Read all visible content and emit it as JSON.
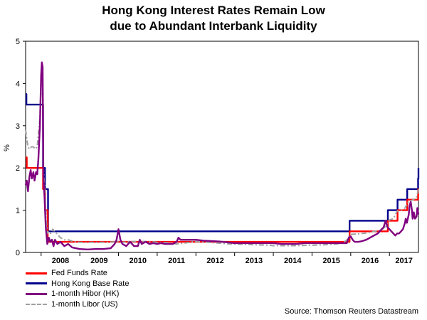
{
  "chart_data": {
    "type": "line",
    "title_line1": "Hong Kong Interest Rates Remain Low",
    "title_line2": "due to Abundant Interbank Liquidity",
    "ylabel": "%",
    "ylim": [
      0,
      5
    ],
    "yticks": [
      "0",
      "1",
      "2",
      "3",
      "4",
      "5"
    ],
    "xlim": [
      2007.6,
      2017.75
    ],
    "xticks": [
      "2008",
      "2009",
      "2010",
      "2011",
      "2012",
      "2013",
      "2014",
      "2015",
      "2016",
      "2017"
    ],
    "series": [
      {
        "name": "Fed Funds Rate",
        "color": "#ff0000",
        "step": true,
        "points": [
          [
            2007.6,
            2.25
          ],
          [
            2007.63,
            2.0
          ],
          [
            2008.0,
            2.0
          ],
          [
            2008.05,
            1.5
          ],
          [
            2008.1,
            1.0
          ],
          [
            2008.16,
            1.0
          ],
          [
            2008.17,
            0.25
          ],
          [
            2015.96,
            0.25
          ],
          [
            2015.97,
            0.5
          ],
          [
            2016.95,
            0.5
          ],
          [
            2016.96,
            0.75
          ],
          [
            2017.2,
            0.75
          ],
          [
            2017.21,
            1.0
          ],
          [
            2017.45,
            1.0
          ],
          [
            2017.46,
            1.25
          ],
          [
            2017.73,
            1.25
          ],
          [
            2017.74,
            1.5
          ],
          [
            2017.75,
            1.5
          ]
        ]
      },
      {
        "name": "Hong Kong Base Rate",
        "color": "#00008b",
        "step": true,
        "points": [
          [
            2007.6,
            3.75
          ],
          [
            2007.62,
            3.5
          ],
          [
            2008.0,
            3.5
          ],
          [
            2008.05,
            2.0
          ],
          [
            2008.1,
            1.5
          ],
          [
            2008.17,
            1.5
          ],
          [
            2008.18,
            0.5
          ],
          [
            2015.96,
            0.5
          ],
          [
            2015.97,
            0.75
          ],
          [
            2016.95,
            0.75
          ],
          [
            2016.96,
            1.0
          ],
          [
            2017.2,
            1.0
          ],
          [
            2017.21,
            1.25
          ],
          [
            2017.45,
            1.25
          ],
          [
            2017.46,
            1.5
          ],
          [
            2017.73,
            1.5
          ],
          [
            2017.74,
            1.75
          ],
          [
            2017.75,
            2.0
          ]
        ]
      },
      {
        "name": "1-month Hibor (HK)",
        "color": "#800080",
        "step": false,
        "points": [
          [
            2007.6,
            1.6
          ],
          [
            2007.63,
            1.7
          ],
          [
            2007.66,
            1.45
          ],
          [
            2007.7,
            1.8
          ],
          [
            2007.73,
            1.95
          ],
          [
            2007.76,
            1.75
          ],
          [
            2007.8,
            1.9
          ],
          [
            2007.83,
            1.7
          ],
          [
            2007.87,
            1.9
          ],
          [
            2007.9,
            1.85
          ],
          [
            2007.93,
            2.2
          ],
          [
            2007.97,
            3.0
          ],
          [
            2008.0,
            4.2
          ],
          [
            2008.02,
            4.5
          ],
          [
            2008.04,
            4.4
          ],
          [
            2008.06,
            1.8
          ],
          [
            2008.09,
            1.3
          ],
          [
            2008.12,
            0.6
          ],
          [
            2008.16,
            0.2
          ],
          [
            2008.2,
            0.35
          ],
          [
            2008.24,
            0.25
          ],
          [
            2008.28,
            0.3
          ],
          [
            2008.32,
            0.15
          ],
          [
            2008.36,
            0.3
          ],
          [
            2008.42,
            0.2
          ],
          [
            2008.5,
            0.25
          ],
          [
            2008.6,
            0.15
          ],
          [
            2008.7,
            0.2
          ],
          [
            2008.8,
            0.12
          ],
          [
            2008.9,
            0.1
          ],
          [
            2009.0,
            0.08
          ],
          [
            2009.2,
            0.07
          ],
          [
            2009.4,
            0.08
          ],
          [
            2009.6,
            0.08
          ],
          [
            2009.8,
            0.1
          ],
          [
            2009.9,
            0.2
          ],
          [
            2009.95,
            0.3
          ],
          [
            2010.0,
            0.55
          ],
          [
            2010.05,
            0.3
          ],
          [
            2010.1,
            0.2
          ],
          [
            2010.2,
            0.15
          ],
          [
            2010.3,
            0.25
          ],
          [
            2010.4,
            0.15
          ],
          [
            2010.5,
            0.15
          ],
          [
            2010.55,
            0.3
          ],
          [
            2010.6,
            0.2
          ],
          [
            2010.7,
            0.25
          ],
          [
            2010.8,
            0.2
          ],
          [
            2010.9,
            0.22
          ],
          [
            2011.0,
            0.2
          ],
          [
            2011.1,
            0.22
          ],
          [
            2011.2,
            0.2
          ],
          [
            2011.3,
            0.2
          ],
          [
            2011.4,
            0.2
          ],
          [
            2011.5,
            0.25
          ],
          [
            2011.55,
            0.35
          ],
          [
            2011.6,
            0.3
          ],
          [
            2011.7,
            0.3
          ],
          [
            2011.8,
            0.3
          ],
          [
            2011.9,
            0.3
          ],
          [
            2012.0,
            0.3
          ],
          [
            2012.2,
            0.28
          ],
          [
            2012.4,
            0.27
          ],
          [
            2012.6,
            0.26
          ],
          [
            2012.8,
            0.24
          ],
          [
            2013.0,
            0.22
          ],
          [
            2013.2,
            0.22
          ],
          [
            2013.4,
            0.22
          ],
          [
            2013.6,
            0.22
          ],
          [
            2013.8,
            0.22
          ],
          [
            2014.0,
            0.22
          ],
          [
            2014.2,
            0.2
          ],
          [
            2014.4,
            0.2
          ],
          [
            2014.6,
            0.2
          ],
          [
            2014.8,
            0.22
          ],
          [
            2015.0,
            0.22
          ],
          [
            2015.2,
            0.22
          ],
          [
            2015.4,
            0.22
          ],
          [
            2015.6,
            0.22
          ],
          [
            2015.8,
            0.22
          ],
          [
            2015.9,
            0.22
          ],
          [
            2015.95,
            0.35
          ],
          [
            2016.0,
            0.38
          ],
          [
            2016.05,
            0.3
          ],
          [
            2016.1,
            0.25
          ],
          [
            2016.2,
            0.25
          ],
          [
            2016.3,
            0.27
          ],
          [
            2016.4,
            0.3
          ],
          [
            2016.5,
            0.35
          ],
          [
            2016.6,
            0.4
          ],
          [
            2016.7,
            0.45
          ],
          [
            2016.75,
            0.5
          ],
          [
            2016.8,
            0.55
          ],
          [
            2016.85,
            0.6
          ],
          [
            2016.9,
            0.75
          ],
          [
            2016.95,
            0.6
          ],
          [
            2017.0,
            0.55
          ],
          [
            2017.05,
            0.5
          ],
          [
            2017.1,
            0.45
          ],
          [
            2017.15,
            0.4
          ],
          [
            2017.2,
            0.45
          ],
          [
            2017.25,
            0.45
          ],
          [
            2017.3,
            0.5
          ],
          [
            2017.35,
            0.55
          ],
          [
            2017.4,
            0.7
          ],
          [
            2017.42,
            0.8
          ],
          [
            2017.45,
            0.7
          ],
          [
            2017.5,
            0.9
          ],
          [
            2017.52,
            1.1
          ],
          [
            2017.55,
            1.2
          ],
          [
            2017.58,
            1.0
          ],
          [
            2017.6,
            0.8
          ],
          [
            2017.63,
            0.95
          ],
          [
            2017.66,
            0.8
          ],
          [
            2017.7,
            0.85
          ],
          [
            2017.72,
            1.05
          ],
          [
            2017.75,
            0.9
          ]
        ]
      },
      {
        "name": "1-month Libor (US)",
        "color": "#a0a0a0",
        "step": false,
        "dashed": true,
        "points": [
          [
            2007.6,
            2.9
          ],
          [
            2007.63,
            2.7
          ],
          [
            2007.66,
            2.5
          ],
          [
            2007.7,
            2.45
          ],
          [
            2007.75,
            2.5
          ],
          [
            2007.8,
            2.5
          ],
          [
            2007.85,
            2.45
          ],
          [
            2007.9,
            2.5
          ],
          [
            2007.93,
            2.8
          ],
          [
            2007.97,
            3.2
          ],
          [
            2008.0,
            4.1
          ],
          [
            2008.03,
            4.3
          ],
          [
            2008.06,
            2.0
          ],
          [
            2008.1,
            1.4
          ],
          [
            2008.13,
            0.8
          ],
          [
            2008.16,
            0.45
          ],
          [
            2008.2,
            0.5
          ],
          [
            2008.25,
            0.45
          ],
          [
            2008.3,
            0.55
          ],
          [
            2008.4,
            0.45
          ],
          [
            2008.5,
            0.35
          ],
          [
            2008.6,
            0.3
          ],
          [
            2008.7,
            0.3
          ],
          [
            2008.8,
            0.27
          ],
          [
            2008.9,
            0.25
          ],
          [
            2009.0,
            0.24
          ],
          [
            2009.3,
            0.24
          ],
          [
            2009.6,
            0.24
          ],
          [
            2009.9,
            0.25
          ],
          [
            2010.0,
            0.26
          ],
          [
            2010.1,
            0.24
          ],
          [
            2010.3,
            0.26
          ],
          [
            2010.5,
            0.26
          ],
          [
            2010.7,
            0.26
          ],
          [
            2010.9,
            0.25
          ],
          [
            2011.0,
            0.24
          ],
          [
            2011.3,
            0.23
          ],
          [
            2011.5,
            0.2
          ],
          [
            2011.7,
            0.22
          ],
          [
            2011.9,
            0.25
          ],
          [
            2012.0,
            0.26
          ],
          [
            2012.3,
            0.24
          ],
          [
            2012.6,
            0.22
          ],
          [
            2012.9,
            0.2
          ],
          [
            2013.0,
            0.2
          ],
          [
            2013.3,
            0.19
          ],
          [
            2013.6,
            0.18
          ],
          [
            2013.9,
            0.17
          ],
          [
            2014.0,
            0.16
          ],
          [
            2014.3,
            0.16
          ],
          [
            2014.6,
            0.16
          ],
          [
            2014.9,
            0.17
          ],
          [
            2015.0,
            0.17
          ],
          [
            2015.3,
            0.18
          ],
          [
            2015.6,
            0.2
          ],
          [
            2015.8,
            0.22
          ],
          [
            2015.9,
            0.3
          ],
          [
            2016.0,
            0.43
          ],
          [
            2016.2,
            0.44
          ],
          [
            2016.4,
            0.46
          ],
          [
            2016.6,
            0.5
          ],
          [
            2016.8,
            0.53
          ],
          [
            2016.9,
            0.62
          ],
          [
            2017.0,
            0.77
          ],
          [
            2017.1,
            0.8
          ],
          [
            2017.2,
            0.98
          ],
          [
            2017.3,
            1.0
          ],
          [
            2017.4,
            1.05
          ],
          [
            2017.5,
            1.22
          ],
          [
            2017.6,
            1.24
          ],
          [
            2017.7,
            1.3
          ],
          [
            2017.75,
            1.5
          ]
        ]
      }
    ],
    "source": "Source: Thomson Reuters Datastream"
  }
}
